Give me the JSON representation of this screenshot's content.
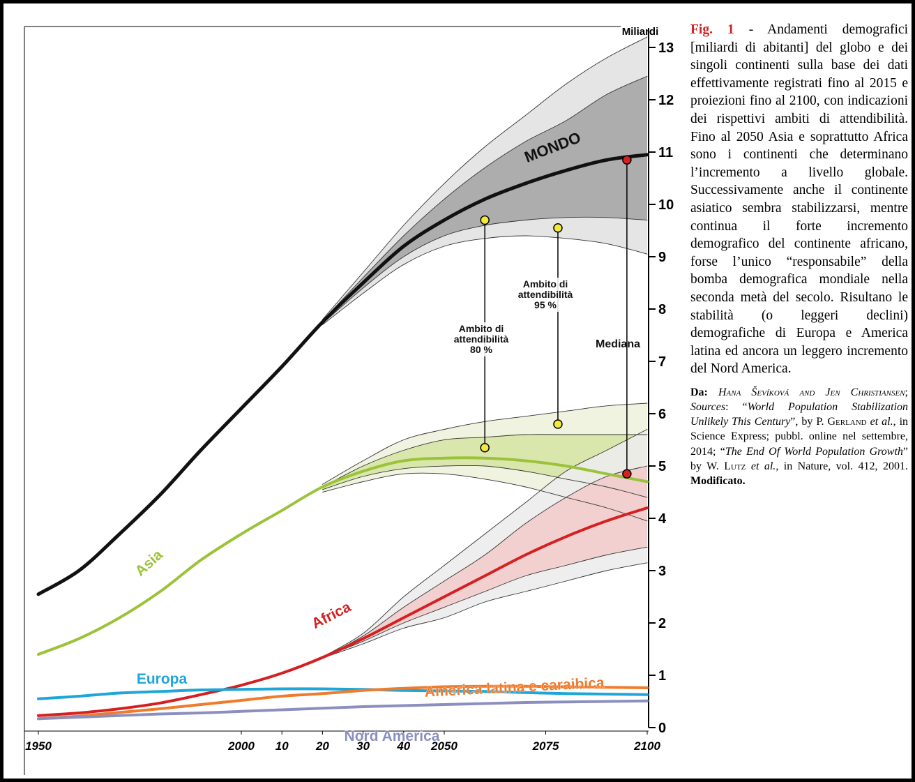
{
  "chart_data": {
    "type": "line",
    "y_label": "Miliardi",
    "x": [
      1950,
      1960,
      1970,
      1980,
      1990,
      2000,
      2010,
      2020,
      2030,
      2040,
      2050,
      2060,
      2070,
      2080,
      2090,
      2100
    ],
    "xlim": [
      1950,
      2100
    ],
    "xticks": [
      1950,
      2000,
      {
        "value": 2010,
        "label": "10"
      },
      {
        "value": 2020,
        "label": "20"
      },
      {
        "value": 2030,
        "label": "30"
      },
      {
        "value": 2040,
        "label": "40"
      },
      2050,
      2075,
      2100
    ],
    "ylim": [
      0,
      13
    ],
    "yticks": [
      0,
      1,
      2,
      3,
      4,
      5,
      6,
      7,
      8,
      9,
      10,
      11,
      12,
      13
    ],
    "series": [
      {
        "name": "MONDO",
        "color": "#111111",
        "values": [
          2.55,
          3.0,
          3.7,
          4.45,
          5.3,
          6.1,
          6.9,
          7.75,
          8.5,
          9.2,
          9.7,
          10.1,
          10.4,
          10.65,
          10.85,
          10.95
        ],
        "bands": [
          {
            "color": "#e2e2e2",
            "lower": [
              null,
              null,
              null,
              null,
              null,
              null,
              null,
              7.7,
              8.3,
              8.85,
              9.2,
              9.35,
              9.4,
              9.35,
              9.25,
              9.05
            ],
            "upper": [
              null,
              null,
              null,
              null,
              null,
              null,
              null,
              7.8,
              8.7,
              9.6,
              10.4,
              11.1,
              11.7,
              12.3,
              12.8,
              13.2
            ]
          },
          {
            "color": "#a6a6a6",
            "lower": [
              null,
              null,
              null,
              null,
              null,
              null,
              null,
              7.72,
              8.4,
              9.0,
              9.4,
              9.6,
              9.7,
              9.75,
              9.75,
              9.7
            ],
            "upper": [
              null,
              null,
              null,
              null,
              null,
              null,
              null,
              7.78,
              8.6,
              9.4,
              10.1,
              10.7,
              11.2,
              11.6,
              12.1,
              12.45
            ]
          }
        ]
      },
      {
        "name": "Asia",
        "color": "#9cc23a",
        "values": [
          1.4,
          1.7,
          2.1,
          2.6,
          3.2,
          3.7,
          4.15,
          4.6,
          4.9,
          5.1,
          5.15,
          5.15,
          5.1,
          5.0,
          4.85,
          4.7
        ],
        "bands": [
          {
            "color": "#eef2dc",
            "lower": [
              null,
              null,
              null,
              null,
              null,
              null,
              null,
              4.5,
              4.7,
              4.85,
              4.85,
              4.75,
              4.6,
              4.4,
              4.2,
              3.95
            ],
            "upper": [
              null,
              null,
              null,
              null,
              null,
              null,
              null,
              4.65,
              5.1,
              5.5,
              5.7,
              5.85,
              5.95,
              6.05,
              6.15,
              6.2
            ]
          },
          {
            "color": "#d6e6a6",
            "lower": [
              null,
              null,
              null,
              null,
              null,
              null,
              null,
              4.55,
              4.8,
              4.95,
              5.0,
              5.0,
              4.9,
              4.75,
              4.6,
              4.4
            ],
            "upper": [
              null,
              null,
              null,
              null,
              null,
              null,
              null,
              4.6,
              5.0,
              5.3,
              5.5,
              5.55,
              5.6,
              5.6,
              5.6,
              5.6
            ]
          }
        ]
      },
      {
        "name": "Africa",
        "color": "#d42020",
        "values": [
          0.23,
          0.28,
          0.36,
          0.47,
          0.63,
          0.81,
          1.04,
          1.34,
          1.7,
          2.1,
          2.5,
          2.9,
          3.3,
          3.65,
          3.95,
          4.2
        ],
        "bands": [
          {
            "color": "#ececec",
            "lower": [
              null,
              null,
              null,
              null,
              null,
              null,
              null,
              1.33,
              1.6,
              1.9,
              2.1,
              2.4,
              2.6,
              2.8,
              3.0,
              3.15
            ],
            "upper": [
              null,
              null,
              null,
              null,
              null,
              null,
              null,
              1.35,
              1.8,
              2.5,
              3.1,
              3.7,
              4.3,
              4.9,
              5.3,
              5.7
            ]
          },
          {
            "color": "#f2cccc",
            "lower": [
              null,
              null,
              null,
              null,
              null,
              null,
              null,
              1.34,
              1.65,
              2.0,
              2.3,
              2.6,
              2.9,
              3.1,
              3.3,
              3.45
            ],
            "upper": [
              null,
              null,
              null,
              null,
              null,
              null,
              null,
              1.34,
              1.75,
              2.3,
              2.8,
              3.3,
              3.9,
              4.4,
              4.8,
              5.0
            ]
          }
        ]
      },
      {
        "name": "Europa",
        "color": "#1fa6d8",
        "values": [
          0.55,
          0.6,
          0.66,
          0.69,
          0.72,
          0.73,
          0.74,
          0.74,
          0.73,
          0.71,
          0.7,
          0.69,
          0.67,
          0.65,
          0.64,
          0.63
        ]
      },
      {
        "name": "America latina e caraibica",
        "color": "#ef7b2c",
        "values": [
          0.17,
          0.22,
          0.29,
          0.36,
          0.44,
          0.52,
          0.6,
          0.65,
          0.71,
          0.75,
          0.78,
          0.79,
          0.79,
          0.78,
          0.77,
          0.76
        ]
      },
      {
        "name": "Nord America",
        "color": "#8b8fbf",
        "values": [
          0.17,
          0.2,
          0.23,
          0.26,
          0.28,
          0.31,
          0.34,
          0.37,
          0.4,
          0.42,
          0.44,
          0.46,
          0.48,
          0.49,
          0.5,
          0.51
        ]
      }
    ],
    "annotations": [
      {
        "lines": [
          "Ambito di",
          "attendibilità",
          "80 %"
        ],
        "x": 2060,
        "y": [
          5.35,
          9.7
        ],
        "color": "#f2ea3c"
      },
      {
        "lines": [
          "Ambito di",
          "attendibilità",
          "95 %"
        ],
        "x": 2078,
        "y": [
          5.8,
          9.55
        ],
        "color": "#f2ea3c"
      },
      {
        "lines": [
          "Mediana"
        ],
        "x": 2095,
        "y": [
          4.85,
          10.85
        ],
        "color": "#d42020"
      }
    ]
  },
  "caption": {
    "fig": "Fig. 1",
    "text": " - Andamenti demografici [miliardi di abitanti] del globo e dei singoli continenti sulla base dei dati effettivamente registrati fino al 2015 e proiezioni fino al 2100, con indicazioni dei rispettivi ambiti di attendibilità. Fino al 2050 Asia e soprattutto Africa sono i continenti che determinano l’incremento a livello globale. Successivamente anche il continente asiatico sembra stabilizzarsi, mentre continua il forte incremento demografico del continente africano, forse l’unico “responsabile” della bomba demografica mondiale nella seconda metà del secolo. Risultano le stabilità (o leggeri declini) demografiche di Europa e America latina ed ancora un leggero incremento del Nord America.",
    "source": [
      {
        "text": "Da: ",
        "style": "b"
      },
      {
        "text": "Hana Ševíková and Jen Christiansen",
        "style": "isc"
      },
      {
        "text": "; ",
        "style": "n"
      },
      {
        "text": "Sources",
        "style": "i"
      },
      {
        "text": ": “",
        "style": "n"
      },
      {
        "text": "World Population Stabilization Unlikely This Century",
        "style": "i"
      },
      {
        "text": "”, by P. ",
        "style": "n"
      },
      {
        "text": "Gerland",
        "style": "sc"
      },
      {
        "text": " ",
        "style": "n"
      },
      {
        "text": "et al.",
        "style": "i"
      },
      {
        "text": ", in Science Express; pubbl. online nel settembre, 2014; “",
        "style": "n"
      },
      {
        "text": "The End Of World Population Growth",
        "style": "i"
      },
      {
        "text": "” by W. ",
        "style": "n"
      },
      {
        "text": "Lutz",
        "style": "sc"
      },
      {
        "text": " ",
        "style": "n"
      },
      {
        "text": "et al.",
        "style": "i"
      },
      {
        "text": ", in Nature, vol. 412, 2001. ",
        "style": "n"
      },
      {
        "text": "Modificato.",
        "style": "b"
      }
    ]
  }
}
